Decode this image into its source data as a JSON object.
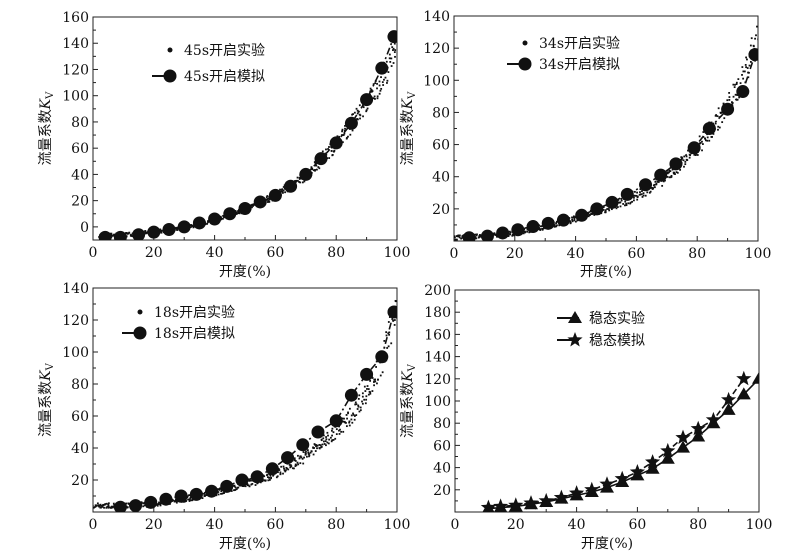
{
  "chart_data": [
    {
      "type": "scatter",
      "xlabel": "开度(%)",
      "ylabel": "流量系数Kv",
      "xlim": [
        0,
        100
      ],
      "ylim": [
        -10,
        160
      ],
      "xticks": [
        0,
        20,
        40,
        60,
        80,
        100
      ],
      "yticks": [
        0,
        20,
        40,
        60,
        80,
        100,
        120,
        140,
        160
      ],
      "legend": "top-left",
      "series": [
        {
          "name": "45s开启实验",
          "marker": "dot",
          "line": "none",
          "x": [
            2,
            10,
            20,
            30,
            40,
            50,
            60,
            70,
            80,
            85,
            90,
            95,
            98,
            100
          ],
          "y": [
            -7,
            -6,
            -4,
            -1,
            5,
            13,
            24,
            39,
            63,
            78,
            95,
            112,
            125,
            145
          ]
        },
        {
          "name": "45s开启模拟",
          "marker": "circle",
          "line": "dash-dot",
          "x": [
            4,
            9,
            15,
            20,
            25,
            30,
            35,
            40,
            45,
            50,
            55,
            60,
            65,
            70,
            75,
            80,
            85,
            90,
            95,
            99
          ],
          "y": [
            -8,
            -8,
            -6,
            -4,
            -2,
            0,
            3,
            6,
            10,
            14,
            19,
            24,
            31,
            40,
            52,
            64,
            79,
            97,
            121,
            145
          ]
        }
      ]
    },
    {
      "type": "scatter",
      "xlabel": "开度(%)",
      "ylabel": "流量系数Kv",
      "xlim": [
        0,
        100
      ],
      "ylim": [
        0,
        140
      ],
      "xticks": [
        0,
        20,
        40,
        60,
        80,
        100
      ],
      "yticks": [
        20,
        40,
        60,
        80,
        100,
        120,
        140
      ],
      "legend": "top-left",
      "series": [
        {
          "name": "34s开启实验",
          "marker": "dot",
          "line": "none",
          "x": [
            0,
            10,
            20,
            30,
            40,
            50,
            60,
            70,
            80,
            85,
            90,
            95,
            98,
            100
          ],
          "y": [
            2,
            3,
            5,
            9,
            14,
            20,
            28,
            40,
            58,
            70,
            84,
            100,
            118,
            125
          ]
        },
        {
          "name": "34s开启模拟",
          "marker": "circle",
          "line": "dash-dot",
          "x": [
            5,
            11,
            16,
            21,
            26,
            31,
            36,
            42,
            47,
            52,
            57,
            63,
            68,
            73,
            79,
            84,
            90,
            95,
            99
          ],
          "y": [
            2,
            3,
            5,
            7,
            9,
            11,
            13,
            16,
            20,
            24,
            29,
            35,
            41,
            48,
            58,
            70,
            82,
            93,
            116
          ]
        }
      ]
    },
    {
      "type": "scatter",
      "xlabel": "开度(%)",
      "ylabel": "流量系数Kv",
      "xlim": [
        0,
        100
      ],
      "ylim": [
        0,
        140
      ],
      "xticks": [
        0,
        20,
        40,
        60,
        80,
        100
      ],
      "yticks": [
        20,
        40,
        60,
        80,
        100,
        120,
        140
      ],
      "legend": "top-left",
      "series": [
        {
          "name": "18s开启实验",
          "marker": "dot",
          "line": "none",
          "x": [
            0,
            10,
            20,
            30,
            40,
            50,
            60,
            70,
            80,
            85,
            90,
            95,
            98,
            100
          ],
          "y": [
            4,
            4,
            5,
            8,
            12,
            17,
            24,
            35,
            50,
            60,
            75,
            92,
            115,
            132
          ]
        },
        {
          "name": "18s开启模拟",
          "marker": "circle",
          "line": "dash-dot",
          "x": [
            9,
            14,
            19,
            24,
            29,
            34,
            39,
            44,
            49,
            54,
            59,
            64,
            69,
            74,
            80,
            85,
            90,
            95,
            99
          ],
          "y": [
            3,
            4,
            6,
            8,
            10,
            11,
            13,
            16,
            20,
            22,
            27,
            34,
            42,
            50,
            57,
            73,
            86,
            97,
            125
          ]
        }
      ]
    },
    {
      "type": "line",
      "xlabel": "开度(%)",
      "ylabel": "流量系数Kv",
      "xlim": [
        0,
        100
      ],
      "ylim": [
        0,
        200
      ],
      "xticks": [
        0,
        20,
        40,
        60,
        80,
        100
      ],
      "yticks": [
        20,
        40,
        60,
        80,
        100,
        120,
        140,
        160,
        180,
        200
      ],
      "legend": "top-center",
      "series": [
        {
          "name": "稳态实验",
          "marker": "triangle",
          "line": "solid",
          "x": [
            11,
            15,
            20,
            25,
            30,
            35,
            40,
            45,
            50,
            55,
            60,
            65,
            70,
            75,
            80,
            85,
            90,
            95,
            100
          ],
          "y": [
            3,
            4,
            5,
            7,
            9,
            12,
            15,
            18,
            22,
            27,
            33,
            39,
            48,
            58,
            68,
            80,
            92,
            106,
            120
          ]
        },
        {
          "name": "稳态模拟",
          "marker": "star",
          "line": "dashed",
          "x": [
            11,
            15,
            20,
            25,
            30,
            35,
            40,
            45,
            50,
            55,
            60,
            65,
            70,
            75,
            80,
            85,
            90,
            95
          ],
          "y": [
            4,
            5,
            6,
            8,
            10,
            13,
            17,
            20,
            25,
            30,
            36,
            45,
            55,
            67,
            75,
            83,
            101,
            120
          ]
        }
      ]
    }
  ]
}
